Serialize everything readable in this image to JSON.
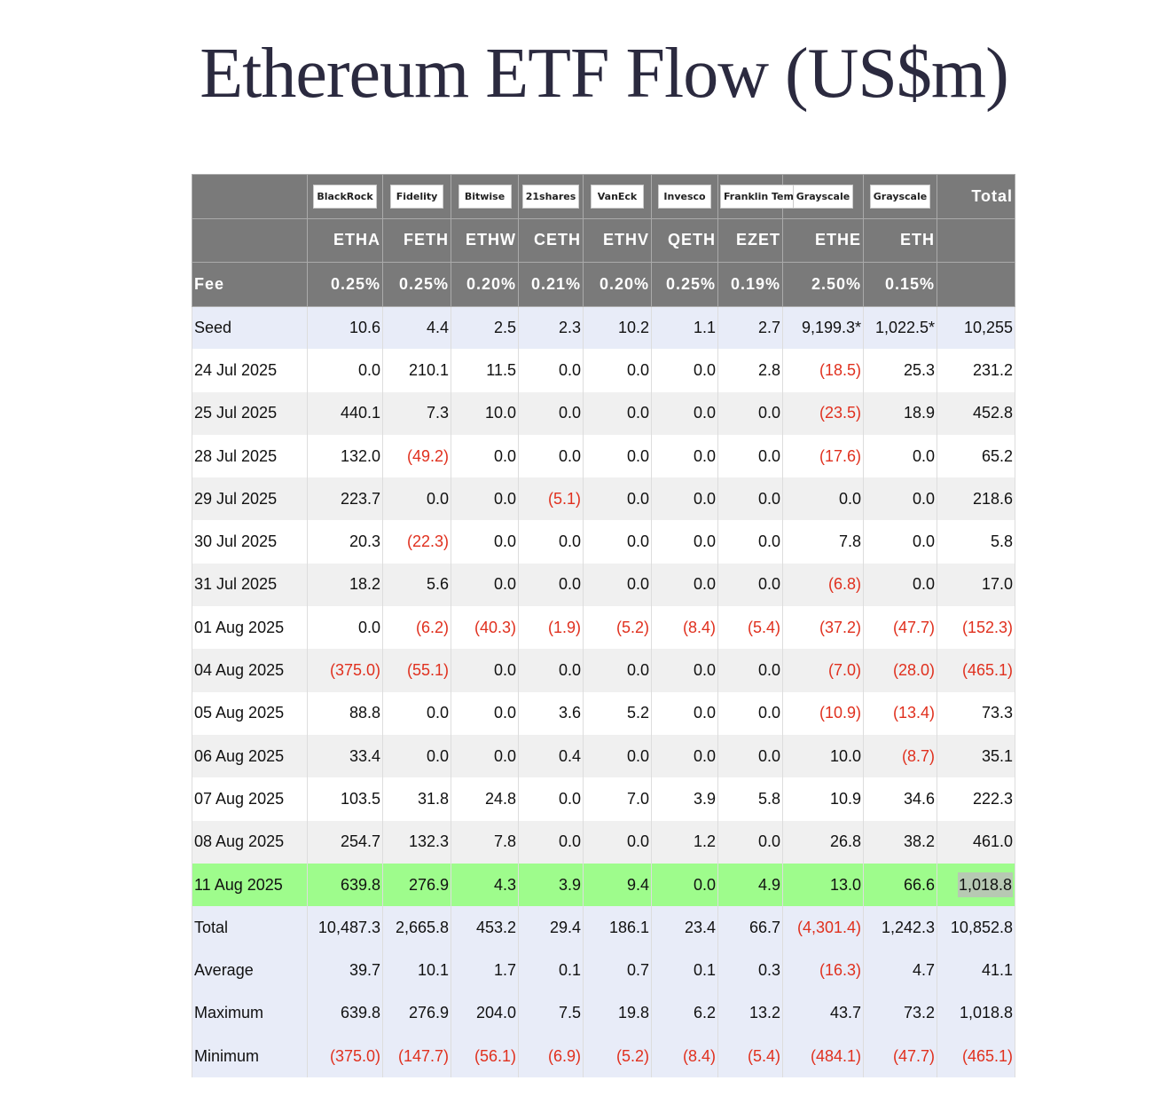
{
  "header": {
    "title": "Ethereum ETF Flow (US$m)"
  },
  "table": {
    "logos": [
      "BlackRock",
      "Fidelity",
      "Bitwise",
      "21shares",
      "VanEck",
      "Invesco",
      "Franklin Templeton",
      "Grayscale",
      "Grayscale"
    ],
    "total_label": "Total",
    "tickers": [
      "ETHA",
      "FETH",
      "ETHW",
      "CETH",
      "ETHV",
      "QETH",
      "EZET",
      "ETHE",
      "ETH"
    ],
    "fee_label": "Fee",
    "fees": [
      "0.25%",
      "0.25%",
      "0.20%",
      "0.21%",
      "0.20%",
      "0.25%",
      "0.19%",
      "2.50%",
      "0.15%"
    ],
    "rows": [
      [
        "Seed",
        "10.6",
        "4.4",
        "2.5",
        "2.3",
        "10.2",
        "1.1",
        "2.7",
        "9,199.3*",
        "1,022.5*",
        "10,255"
      ],
      [
        "24 Jul 2025",
        "0.0",
        "210.1",
        "11.5",
        "0.0",
        "0.0",
        "0.0",
        "2.8",
        "(18.5)",
        "25.3",
        "231.2"
      ],
      [
        "25 Jul 2025",
        "440.1",
        "7.3",
        "10.0",
        "0.0",
        "0.0",
        "0.0",
        "0.0",
        "(23.5)",
        "18.9",
        "452.8"
      ],
      [
        "28 Jul 2025",
        "132.0",
        "(49.2)",
        "0.0",
        "0.0",
        "0.0",
        "0.0",
        "0.0",
        "(17.6)",
        "0.0",
        "65.2"
      ],
      [
        "29 Jul 2025",
        "223.7",
        "0.0",
        "0.0",
        "(5.1)",
        "0.0",
        "0.0",
        "0.0",
        "0.0",
        "0.0",
        "218.6"
      ],
      [
        "30 Jul 2025",
        "20.3",
        "(22.3)",
        "0.0",
        "0.0",
        "0.0",
        "0.0",
        "0.0",
        "7.8",
        "0.0",
        "5.8"
      ],
      [
        "31 Jul 2025",
        "18.2",
        "5.6",
        "0.0",
        "0.0",
        "0.0",
        "0.0",
        "0.0",
        "(6.8)",
        "0.0",
        "17.0"
      ],
      [
        "01 Aug 2025",
        "0.0",
        "(6.2)",
        "(40.3)",
        "(1.9)",
        "(5.2)",
        "(8.4)",
        "(5.4)",
        "(37.2)",
        "(47.7)",
        "(152.3)"
      ],
      [
        "04 Aug 2025",
        "(375.0)",
        "(55.1)",
        "0.0",
        "0.0",
        "0.0",
        "0.0",
        "0.0",
        "(7.0)",
        "(28.0)",
        "(465.1)"
      ],
      [
        "05 Aug 2025",
        "88.8",
        "0.0",
        "0.0",
        "3.6",
        "5.2",
        "0.0",
        "0.0",
        "(10.9)",
        "(13.4)",
        "73.3"
      ],
      [
        "06 Aug 2025",
        "33.4",
        "0.0",
        "0.0",
        "0.4",
        "0.0",
        "0.0",
        "0.0",
        "10.0",
        "(8.7)",
        "35.1"
      ],
      [
        "07 Aug 2025",
        "103.5",
        "31.8",
        "24.8",
        "0.0",
        "7.0",
        "3.9",
        "5.8",
        "10.9",
        "34.6",
        "222.3"
      ],
      [
        "08 Aug 2025",
        "254.7",
        "132.3",
        "7.8",
        "0.0",
        "0.0",
        "1.2",
        "0.0",
        "26.8",
        "38.2",
        "461.0"
      ],
      [
        "11 Aug 2025",
        "639.8",
        "276.9",
        "4.3",
        "3.9",
        "9.4",
        "0.0",
        "4.9",
        "13.0",
        "66.6",
        "1,018.8"
      ],
      [
        "Total",
        "10,487.3",
        "2,665.8",
        "453.2",
        "29.4",
        "186.1",
        "23.4",
        "66.7",
        "(4,301.4)",
        "1,242.3",
        "10,852.8"
      ],
      [
        "Average",
        "39.7",
        "10.1",
        "1.7",
        "0.1",
        "0.7",
        "0.1",
        "0.3",
        "(16.3)",
        "4.7",
        "41.1"
      ],
      [
        "Maximum",
        "639.8",
        "276.9",
        "204.0",
        "7.5",
        "19.8",
        "6.2",
        "13.2",
        "43.7",
        "73.2",
        "1,018.8"
      ],
      [
        "Minimum",
        "(375.0)",
        "(147.7)",
        "(56.1)",
        "(6.9)",
        "(5.2)",
        "(8.4)",
        "(5.4)",
        "(484.1)",
        "(47.7)",
        "(465.1)"
      ]
    ]
  }
}
